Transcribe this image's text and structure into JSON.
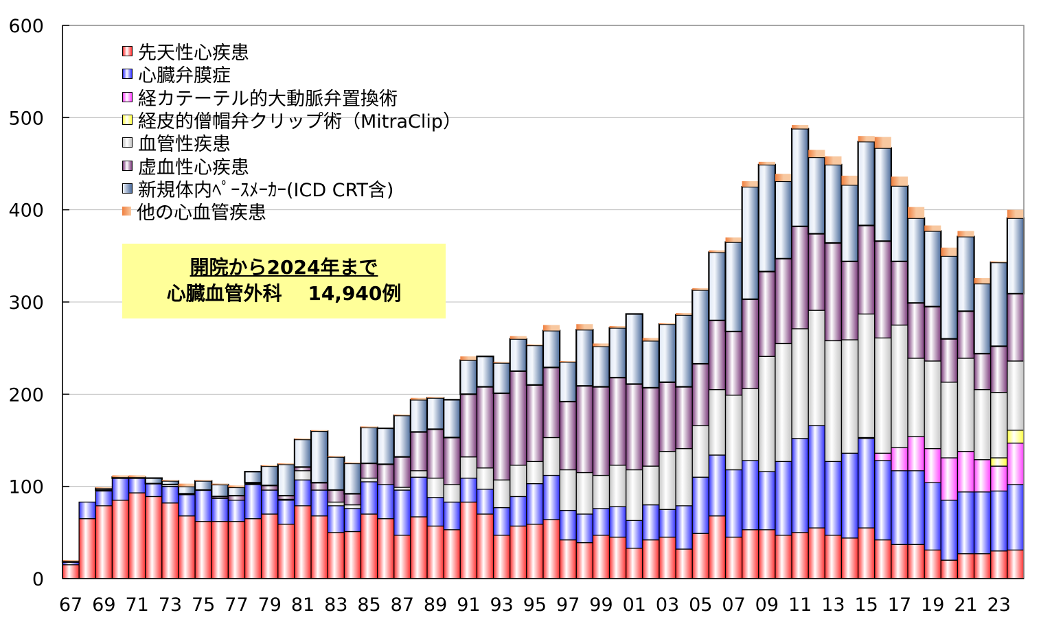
{
  "chart_data": {
    "type": "bar",
    "stacked": true,
    "title": "",
    "xlabel": "",
    "ylabel": "",
    "ylim": [
      0,
      600
    ],
    "yticks": [
      0,
      100,
      200,
      300,
      400,
      500,
      600
    ],
    "grid": true,
    "legend_position": "top-left",
    "categories": [
      "67",
      "68",
      "69",
      "70",
      "71",
      "72",
      "73",
      "74",
      "75",
      "76",
      "77",
      "78",
      "79",
      "80",
      "81",
      "82",
      "83",
      "84",
      "85",
      "86",
      "87",
      "88",
      "89",
      "90",
      "91",
      "92",
      "93",
      "94",
      "95",
      "96",
      "97",
      "98",
      "99",
      "00",
      "01",
      "02",
      "03",
      "04",
      "05",
      "06",
      "07",
      "08",
      "09",
      "10",
      "11",
      "12",
      "13",
      "14",
      "15",
      "16",
      "17",
      "18",
      "19",
      "20",
      "21",
      "22",
      "23",
      "24"
    ],
    "xtick_labels": [
      "67",
      "69",
      "71",
      "73",
      "75",
      "77",
      "79",
      "81",
      "83",
      "85",
      "87",
      "89",
      "91",
      "93",
      "95",
      "97",
      "99",
      "01",
      "03",
      "05",
      "07",
      "09",
      "11",
      "13",
      "15",
      "17",
      "19",
      "21",
      "23"
    ],
    "series": [
      {
        "name": "先天性心疾患",
        "color": "#ff3030",
        "values": [
          15,
          65,
          79,
          85,
          93,
          89,
          82,
          68,
          62,
          62,
          62,
          65,
          70,
          59,
          79,
          68,
          50,
          51,
          70,
          65,
          47,
          67,
          57,
          53,
          83,
          70,
          47,
          57,
          59,
          64,
          42,
          39,
          47,
          45,
          33,
          42,
          45,
          32,
          49,
          68,
          45,
          53,
          53,
          47,
          50,
          55,
          47,
          44,
          55,
          42,
          37,
          37,
          31,
          20,
          27,
          27,
          30,
          31
        ]
      },
      {
        "name": "心臓弁膜症",
        "color": "#3030ff",
        "values": [
          3,
          18,
          16,
          24,
          16,
          14,
          18,
          23,
          34,
          25,
          23,
          37,
          26,
          26,
          28,
          28,
          29,
          25,
          35,
          37,
          49,
          43,
          31,
          30,
          26,
          27,
          30,
          32,
          44,
          48,
          32,
          31,
          29,
          33,
          30,
          38,
          30,
          47,
          61,
          66,
          73,
          75,
          63,
          80,
          102,
          111,
          80,
          92,
          97,
          86,
          80,
          80,
          73,
          65,
          67,
          67,
          65,
          71
        ]
      },
      {
        "name": "経カテーテル的大動脈弁置換術",
        "color": "#ff40ff",
        "values": [
          0,
          0,
          0,
          0,
          0,
          0,
          0,
          0,
          0,
          0,
          0,
          0,
          0,
          0,
          0,
          0,
          0,
          0,
          0,
          0,
          0,
          0,
          0,
          0,
          0,
          0,
          0,
          0,
          0,
          0,
          0,
          0,
          0,
          0,
          0,
          0,
          0,
          0,
          0,
          0,
          0,
          0,
          0,
          0,
          0,
          0,
          0,
          0,
          1,
          8,
          25,
          37,
          37,
          46,
          44,
          35,
          27,
          45
        ]
      },
      {
        "name": "経皮的僧帽弁クリップ術（MitraClip）",
        "color": "#ffff40",
        "values": [
          0,
          0,
          0,
          0,
          0,
          0,
          0,
          0,
          0,
          0,
          0,
          0,
          0,
          0,
          0,
          0,
          0,
          0,
          0,
          0,
          0,
          0,
          0,
          0,
          0,
          0,
          0,
          0,
          0,
          0,
          0,
          0,
          0,
          0,
          0,
          0,
          0,
          0,
          0,
          0,
          0,
          0,
          0,
          0,
          0,
          0,
          0,
          0,
          0,
          0,
          0,
          0,
          0,
          0,
          0,
          0,
          9,
          14
        ]
      },
      {
        "name": "血管性疾患",
        "color": "#c4c4c4",
        "values": [
          0,
          0,
          1,
          0,
          0,
          0,
          2,
          0,
          0,
          0,
          0,
          1,
          0,
          1,
          10,
          0,
          4,
          4,
          4,
          0,
          3,
          7,
          21,
          19,
          23,
          23,
          30,
          34,
          24,
          41,
          44,
          45,
          36,
          45,
          55,
          42,
          63,
          62,
          56,
          71,
          81,
          78,
          125,
          128,
          119,
          125,
          131,
          123,
          134,
          125,
          133,
          85,
          95,
          82,
          101,
          76,
          71,
          75
        ]
      },
      {
        "name": "虚血性心疾患",
        "color": "#7a3a7a",
        "values": [
          0,
          0,
          0,
          0,
          0,
          0,
          0,
          1,
          0,
          2,
          5,
          1,
          5,
          4,
          4,
          8,
          13,
          12,
          16,
          22,
          33,
          42,
          53,
          51,
          68,
          88,
          94,
          102,
          83,
          76,
          74,
          94,
          96,
          95,
          93,
          85,
          75,
          67,
          67,
          75,
          69,
          97,
          92,
          92,
          111,
          83,
          106,
          85,
          96,
          105,
          69,
          60,
          59,
          47,
          51,
          39,
          50,
          73
        ]
      },
      {
        "name": "新規体内ﾍﾟｰｽﾒｰｶｰ(ICD  CRT含)",
        "color": "#4a6a9a",
        "values": [
          1,
          0,
          2,
          1,
          1,
          6,
          4,
          8,
          10,
          13,
          9,
          12,
          21,
          34,
          30,
          56,
          36,
          33,
          39,
          39,
          45,
          35,
          34,
          41,
          37,
          33,
          33,
          35,
          43,
          40,
          43,
          61,
          44,
          54,
          76,
          51,
          63,
          78,
          80,
          74,
          97,
          122,
          116,
          84,
          106,
          83,
          85,
          83,
          91,
          101,
          82,
          92,
          82,
          90,
          81,
          76,
          91,
          82
        ]
      },
      {
        "name": "他の心血管疾患",
        "color": "#f08040",
        "values": [
          1,
          0,
          1,
          2,
          2,
          0,
          1,
          3,
          1,
          1,
          2,
          0,
          1,
          1,
          1,
          1,
          1,
          1,
          1,
          0,
          1,
          2,
          1,
          0,
          4,
          0,
          1,
          3,
          1,
          6,
          1,
          6,
          3,
          2,
          0,
          3,
          1,
          2,
          2,
          2,
          5,
          6,
          3,
          8,
          4,
          8,
          9,
          10,
          6,
          12,
          10,
          12,
          6,
          9,
          6,
          6,
          1,
          9
        ]
      }
    ],
    "annotation": {
      "line1": "開院から2024年まで",
      "line2": "心臓血管外科　 14,940例",
      "background": "#ffff99"
    }
  }
}
